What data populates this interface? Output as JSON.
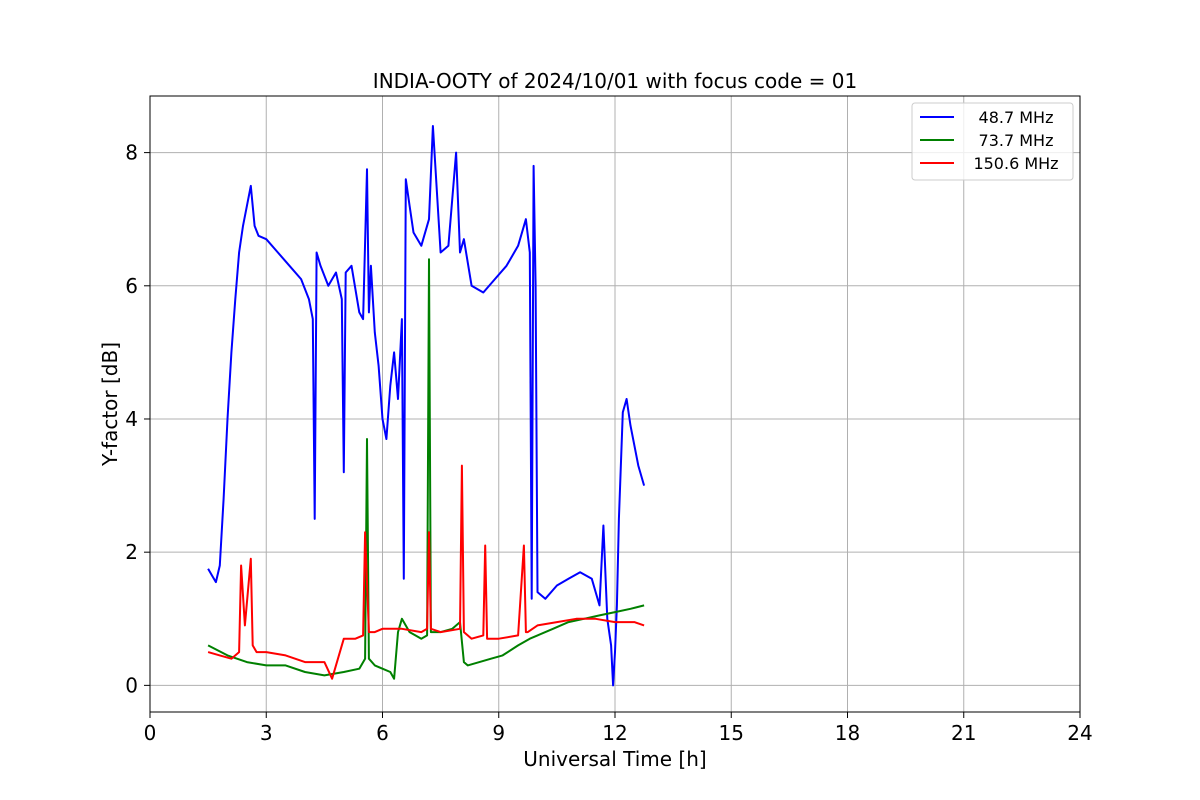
{
  "chart_data": {
    "type": "line",
    "title": "INDIA-OOTY of 2024/10/01 with focus code = 01",
    "xlabel": "Universal Time [h]",
    "ylabel": "Y-factor [dB]",
    "xlim": [
      0,
      24
    ],
    "ylim": [
      -0.4,
      8.85
    ],
    "xticks": [
      0,
      3,
      6,
      9,
      12,
      15,
      18,
      21,
      24
    ],
    "yticks": [
      0,
      2,
      4,
      6,
      8
    ],
    "grid": true,
    "legend_position": "top-right",
    "series": [
      {
        "name": "48.7 MHz",
        "color": "#0000ff",
        "x": [
          1.5,
          1.6,
          1.7,
          1.8,
          1.9,
          2.0,
          2.1,
          2.2,
          2.3,
          2.4,
          2.5,
          2.6,
          2.7,
          2.8,
          3.0,
          3.3,
          3.6,
          3.9,
          4.1,
          4.2,
          4.25,
          4.3,
          4.4,
          4.6,
          4.8,
          4.95,
          5.0,
          5.05,
          5.2,
          5.4,
          5.5,
          5.6,
          5.65,
          5.7,
          5.8,
          5.9,
          6.0,
          6.1,
          6.2,
          6.3,
          6.4,
          6.5,
          6.55,
          6.6,
          6.7,
          6.8,
          7.0,
          7.2,
          7.3,
          7.5,
          7.7,
          7.9,
          8.0,
          8.1,
          8.3,
          8.6,
          8.9,
          9.2,
          9.5,
          9.7,
          9.8,
          9.85,
          9.9,
          9.95,
          10.0,
          10.2,
          10.5,
          10.8,
          11.1,
          11.4,
          11.6,
          11.7,
          11.8,
          11.9,
          11.95,
          12.0,
          12.05,
          12.1,
          12.2,
          12.3,
          12.4,
          12.5,
          12.6,
          12.75
        ],
        "values": [
          1.75,
          1.65,
          1.55,
          1.8,
          2.8,
          4.0,
          5.0,
          5.8,
          6.5,
          6.9,
          7.2,
          7.5,
          6.9,
          6.75,
          6.7,
          6.5,
          6.3,
          6.1,
          5.8,
          5.5,
          2.5,
          6.5,
          6.3,
          6.0,
          6.2,
          5.8,
          3.2,
          6.2,
          6.3,
          5.6,
          5.5,
          7.75,
          5.6,
          6.3,
          5.3,
          4.8,
          4.0,
          3.7,
          4.5,
          5.0,
          4.3,
          5.5,
          1.6,
          7.6,
          7.2,
          6.8,
          6.6,
          7.0,
          8.4,
          6.5,
          6.6,
          8.0,
          6.5,
          6.7,
          6.0,
          5.9,
          6.1,
          6.3,
          6.6,
          7.0,
          6.5,
          1.3,
          7.8,
          6.0,
          1.4,
          1.3,
          1.5,
          1.6,
          1.7,
          1.6,
          1.2,
          2.4,
          1.0,
          0.6,
          0.0,
          0.5,
          1.2,
          2.5,
          4.1,
          4.3,
          3.9,
          3.6,
          3.3,
          3.0
        ]
      },
      {
        "name": "73.7 MHz",
        "color": "#008000",
        "x": [
          1.5,
          2.0,
          2.5,
          3.0,
          3.5,
          4.0,
          4.5,
          5.0,
          5.4,
          5.55,
          5.6,
          5.65,
          5.8,
          6.0,
          6.2,
          6.3,
          6.4,
          6.5,
          6.7,
          7.0,
          7.15,
          7.2,
          7.25,
          7.5,
          7.8,
          8.0,
          8.1,
          8.2,
          8.5,
          8.8,
          9.1,
          9.5,
          9.8,
          10.0,
          10.4,
          10.8,
          11.2,
          11.6,
          12.0,
          12.4,
          12.75
        ],
        "values": [
          0.6,
          0.45,
          0.35,
          0.3,
          0.3,
          0.2,
          0.15,
          0.2,
          0.25,
          0.4,
          3.7,
          0.4,
          0.3,
          0.25,
          0.2,
          0.1,
          0.8,
          1.0,
          0.8,
          0.7,
          0.75,
          6.4,
          0.8,
          0.8,
          0.85,
          0.95,
          0.35,
          0.3,
          0.35,
          0.4,
          0.45,
          0.6,
          0.7,
          0.75,
          0.85,
          0.95,
          1.0,
          1.05,
          1.1,
          1.15,
          1.2
        ]
      },
      {
        "name": "150.6 MHz",
        "color": "#ff0000",
        "x": [
          1.5,
          1.8,
          2.1,
          2.3,
          2.35,
          2.45,
          2.6,
          2.65,
          2.75,
          3.0,
          3.5,
          4.0,
          4.5,
          4.7,
          5.0,
          5.3,
          5.5,
          5.55,
          5.65,
          5.8,
          6.0,
          6.5,
          7.0,
          7.15,
          7.2,
          7.25,
          7.5,
          8.0,
          8.05,
          8.1,
          8.3,
          8.6,
          8.65,
          8.7,
          9.0,
          9.5,
          9.65,
          9.7,
          9.75,
          10.0,
          10.5,
          11.0,
          11.5,
          12.0,
          12.5,
          12.75
        ],
        "values": [
          0.5,
          0.45,
          0.4,
          0.5,
          1.8,
          0.9,
          1.9,
          0.6,
          0.5,
          0.5,
          0.45,
          0.35,
          0.35,
          0.1,
          0.7,
          0.7,
          0.75,
          2.3,
          0.8,
          0.8,
          0.85,
          0.85,
          0.8,
          0.85,
          2.3,
          0.85,
          0.8,
          0.85,
          3.3,
          0.8,
          0.7,
          0.75,
          2.1,
          0.7,
          0.7,
          0.75,
          2.1,
          0.8,
          0.8,
          0.9,
          0.95,
          1.0,
          1.0,
          0.95,
          0.95,
          0.9
        ]
      }
    ]
  }
}
